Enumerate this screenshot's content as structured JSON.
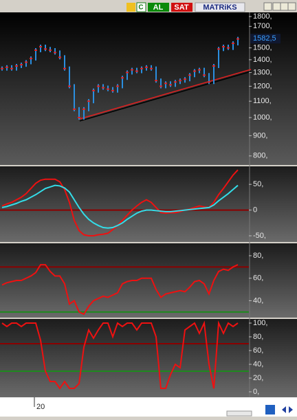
{
  "toolbar": {
    "buy": "AL",
    "sell": "SAT",
    "brand": "MATRiKS"
  },
  "chart_data": [
    {
      "type": "step",
      "log_scale": true,
      "ylim": [
        759,
        1844
      ],
      "yticks": [
        {
          "value": 1800,
          "label": "1800,"
        },
        {
          "value": 1700,
          "label": "1700,"
        },
        {
          "value": 1500,
          "label": "1500,"
        },
        {
          "value": 1400,
          "label": "1400,"
        },
        {
          "value": 1300,
          "label": "1300,"
        },
        {
          "value": 1200,
          "label": "1200,"
        },
        {
          "value": 1100,
          "label": "1100,"
        },
        {
          "value": 1000,
          "label": "1000,"
        },
        {
          "value": 900,
          "label": "900,"
        },
        {
          "value": 800,
          "label": "800,"
        }
      ],
      "last_price": {
        "value": 1582.5,
        "label": "1582,5"
      },
      "series": [
        {
          "color": "#2b8fe0",
          "tick_color": "#e02020",
          "values": [
            1330,
            1340,
            1330,
            1350,
            1360,
            1380,
            1410,
            1480,
            1510,
            1490,
            1480,
            1460,
            1420,
            1330,
            1200,
            1050,
            1000,
            1050,
            1100,
            1170,
            1200,
            1190,
            1180,
            1170,
            1200,
            1260,
            1300,
            1320,
            1310,
            1330,
            1340,
            1330,
            1240,
            1200,
            1220,
            1210,
            1230,
            1240,
            1250,
            1280,
            1310,
            1320,
            1280,
            1230,
            1350,
            1490,
            1510,
            1500,
            1540,
            1580
          ]
        }
      ]
    },
    {
      "type": "line",
      "ylim": [
        -62,
        85
      ],
      "yticks": [
        {
          "value": 50,
          "label": "50,"
        },
        0,
        {
          "value": -50,
          "label": "-50,"
        }
      ],
      "hlines": [
        {
          "value": 0,
          "color": "#8b0000"
        }
      ],
      "series": [
        {
          "color": "#ee1111",
          "values": [
            8,
            12,
            15,
            20,
            25,
            32,
            42,
            52,
            58,
            60,
            60,
            60,
            55,
            40,
            15,
            -20,
            -40,
            -48,
            -50,
            -50,
            -48,
            -47,
            -45,
            -38,
            -30,
            -20,
            -10,
            0,
            8,
            15,
            20,
            15,
            5,
            -5,
            -6,
            -5,
            -5,
            -3,
            0,
            2,
            5,
            8,
            6,
            5,
            15,
            30,
            42,
            55,
            68,
            78
          ]
        },
        {
          "color": "#33dde8",
          "values": [
            5,
            7,
            10,
            13,
            17,
            20,
            25,
            30,
            36,
            42,
            45,
            48,
            47,
            43,
            35,
            20,
            5,
            -8,
            -18,
            -25,
            -30,
            -34,
            -35,
            -34,
            -30,
            -25,
            -18,
            -12,
            -6,
            -2,
            0,
            0,
            -1,
            -2,
            -3,
            -3,
            -2,
            -1,
            0,
            1,
            2,
            3,
            4,
            5,
            10,
            18,
            25,
            32,
            40,
            48
          ]
        }
      ]
    },
    {
      "type": "line",
      "ylim": [
        25,
        91
      ],
      "yticks": [
        {
          "value": 80,
          "label": "80,"
        },
        {
          "value": 60,
          "label": "60,"
        },
        {
          "value": 40,
          "label": "40,"
        }
      ],
      "hlines": [
        {
          "value": 70,
          "color": "#8b0000"
        },
        {
          "value": 30,
          "color": "#1e8a1e"
        }
      ],
      "series": [
        {
          "color": "#ee1111",
          "values": [
            54,
            56,
            57,
            58,
            58,
            60,
            62,
            65,
            72,
            72,
            66,
            62,
            62,
            55,
            37,
            40,
            30,
            28,
            35,
            40,
            42,
            44,
            43,
            45,
            47,
            55,
            57,
            58,
            58,
            60,
            60,
            60,
            50,
            43,
            46,
            47,
            48,
            49,
            48,
            52,
            57,
            58,
            55,
            46,
            58,
            66,
            68,
            67,
            70,
            72
          ]
        }
      ]
    },
    {
      "type": "line",
      "ylim": [
        -8,
        106
      ],
      "yticks": [
        {
          "value": 100,
          "label": "100,"
        },
        {
          "value": 80,
          "label": "80,"
        },
        {
          "value": 60,
          "label": "60,"
        },
        {
          "value": 40,
          "label": "40,"
        },
        {
          "value": 20,
          "label": "20,"
        },
        {
          "value": 0,
          "label": "0,"
        }
      ],
      "hlines": [
        {
          "value": 70,
          "color": "#8b0000"
        },
        {
          "value": 30,
          "color": "#1e8a1e"
        }
      ],
      "series": [
        {
          "color": "#ee1111",
          "values": [
            100,
            95,
            100,
            100,
            95,
            100,
            100,
            100,
            75,
            30,
            15,
            15,
            5,
            15,
            5,
            5,
            12,
            65,
            90,
            78,
            90,
            100,
            100,
            80,
            100,
            95,
            100,
            100,
            90,
            100,
            100,
            100,
            80,
            5,
            5,
            25,
            40,
            35,
            90,
            95,
            100,
            85,
            100,
            40,
            5,
            100,
            85,
            100,
            95,
            100
          ]
        }
      ]
    }
  ],
  "x_axis": {
    "label": "20"
  }
}
